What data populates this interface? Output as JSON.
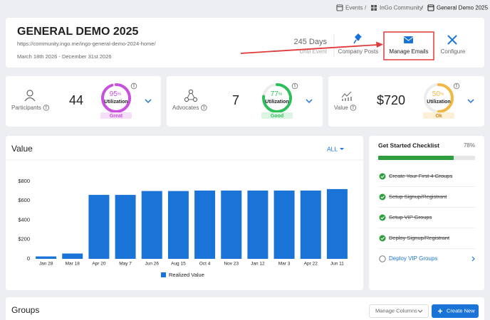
{
  "breadcrumb": {
    "items": [
      "Events",
      "InGo Community",
      "General Demo 2025"
    ],
    "separator": "/"
  },
  "header": {
    "title": "GENERAL DEMO 2025",
    "url": "https://community.ingo.me/ingo-general-demo-2024-home/",
    "dates": "March 18th 2026 - December 31st 2026",
    "countdown": {
      "value": "245 Days",
      "label": "Until Event"
    },
    "actions": [
      "Company Posts",
      "Manage Emails",
      "Configure"
    ]
  },
  "stats": [
    {
      "label": "Participants",
      "value": "44",
      "percent": 95,
      "percent_unit": "%",
      "gauge_label": "Utilization",
      "rating": "Great",
      "color": "#c94fdf",
      "badge_color": "#f6def9"
    },
    {
      "label": "Advocates",
      "value": "7",
      "percent": 77,
      "percent_unit": "%",
      "gauge_label": "Utilization",
      "rating": "Good",
      "color": "#2fbf5a",
      "badge_color": "#dcf5e3"
    },
    {
      "label": "Value",
      "value": "$720",
      "percent": 50,
      "percent_unit": "%",
      "gauge_label": "Utilization",
      "rating": "Ok",
      "color": "#f3b744",
      "badge_color": "#fdf0d7"
    }
  ],
  "value_panel": {
    "filter": "ALL"
  },
  "chart_data": {
    "type": "bar",
    "title": "Value",
    "categories": [
      "Jan 28",
      "Mar 18",
      "Apr 20",
      "May 7",
      "Jun 26",
      "Aug 15",
      "Oct 4",
      "Nov 23",
      "Jan 12",
      "Mar 3",
      "Apr 22",
      "Jun 11"
    ],
    "series": [
      {
        "name": "Realized Value",
        "color": "#1a74d8",
        "values": [
          25,
          55,
          660,
          660,
          700,
          700,
          705,
          705,
          705,
          705,
          705,
          720
        ]
      }
    ],
    "ylim": [
      0,
      800
    ],
    "yticks": [
      0,
      {
        "value": 200,
        "label": "$200"
      },
      {
        "value": 400,
        "label": "$400"
      },
      {
        "value": 600,
        "label": "$600"
      },
      {
        "value": 800,
        "label": "$800"
      }
    ],
    "grid": false
  },
  "checklist": {
    "title": "Get Started Checklist",
    "progress": 78,
    "progress_label": "78%",
    "items": [
      {
        "text": "Create Your First 4 Groups",
        "done": true
      },
      {
        "text": "Setup Signup/Registrant",
        "done": true
      },
      {
        "text": "Setup VIP Groups",
        "done": true
      },
      {
        "text": "Deploy Signup/Registrant",
        "done": true
      },
      {
        "text": "Deploy VIP Groups",
        "done": false
      }
    ]
  },
  "groups": {
    "title": "Groups",
    "manage": "Manage Columns",
    "create": "Create New"
  }
}
